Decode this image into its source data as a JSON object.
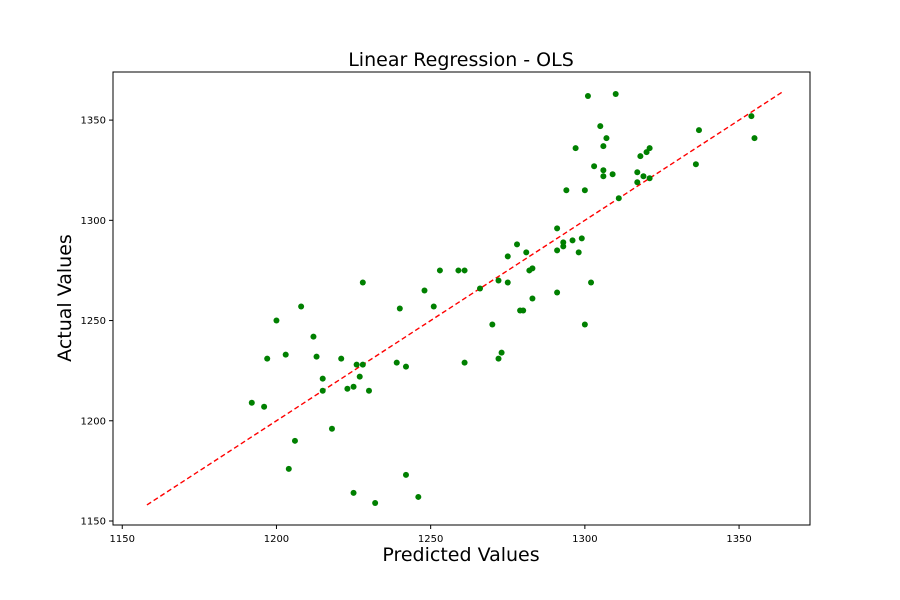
{
  "chart_data": {
    "type": "scatter",
    "title": "Linear Regression - OLS",
    "xlabel": "Predicted Values",
    "ylabel": "Actual Values",
    "xlim": [
      1147,
      1373
    ],
    "ylim": [
      1148,
      1374
    ],
    "xticks": [
      1150,
      1200,
      1250,
      1300,
      1350
    ],
    "yticks": [
      1150,
      1200,
      1250,
      1300,
      1350
    ],
    "grid": false,
    "colors": {
      "points": "#008000",
      "reference_line": "#ff0000"
    },
    "reference_line": {
      "style": "dashed",
      "x": [
        1158,
        1364
      ],
      "y": [
        1158,
        1364
      ]
    },
    "points": [
      [
        1192,
        1209
      ],
      [
        1196,
        1207
      ],
      [
        1197,
        1231
      ],
      [
        1200,
        1250
      ],
      [
        1203,
        1233
      ],
      [
        1204,
        1176
      ],
      [
        1206,
        1190
      ],
      [
        1208,
        1257
      ],
      [
        1212,
        1242
      ],
      [
        1213,
        1232
      ],
      [
        1215,
        1221
      ],
      [
        1215,
        1215
      ],
      [
        1218,
        1196
      ],
      [
        1221,
        1231
      ],
      [
        1223,
        1216
      ],
      [
        1225,
        1217
      ],
      [
        1225,
        1164
      ],
      [
        1226,
        1228
      ],
      [
        1227,
        1222
      ],
      [
        1228,
        1269
      ],
      [
        1228,
        1228
      ],
      [
        1230,
        1215
      ],
      [
        1232,
        1159
      ],
      [
        1239,
        1229
      ],
      [
        1240,
        1256
      ],
      [
        1242,
        1227
      ],
      [
        1242,
        1173
      ],
      [
        1246,
        1162
      ],
      [
        1248,
        1265
      ],
      [
        1251,
        1257
      ],
      [
        1253,
        1275
      ],
      [
        1259,
        1275
      ],
      [
        1261,
        1275
      ],
      [
        1261,
        1229
      ],
      [
        1266,
        1266
      ],
      [
        1270,
        1248
      ],
      [
        1272,
        1231
      ],
      [
        1272,
        1270
      ],
      [
        1273,
        1234
      ],
      [
        1275,
        1269
      ],
      [
        1275,
        1282
      ],
      [
        1278,
        1288
      ],
      [
        1279,
        1255
      ],
      [
        1280,
        1255
      ],
      [
        1281,
        1284
      ],
      [
        1282,
        1275
      ],
      [
        1283,
        1276
      ],
      [
        1283,
        1261
      ],
      [
        1291,
        1264
      ],
      [
        1291,
        1296
      ],
      [
        1291,
        1285
      ],
      [
        1293,
        1287
      ],
      [
        1293,
        1289
      ],
      [
        1294,
        1315
      ],
      [
        1296,
        1290
      ],
      [
        1297,
        1336
      ],
      [
        1298,
        1284
      ],
      [
        1299,
        1291
      ],
      [
        1300,
        1315
      ],
      [
        1300,
        1248
      ],
      [
        1301,
        1362
      ],
      [
        1302,
        1269
      ],
      [
        1303,
        1327
      ],
      [
        1305,
        1347
      ],
      [
        1306,
        1322
      ],
      [
        1306,
        1325
      ],
      [
        1306,
        1337
      ],
      [
        1307,
        1341
      ],
      [
        1309,
        1323
      ],
      [
        1310,
        1363
      ],
      [
        1311,
        1311
      ],
      [
        1317,
        1324
      ],
      [
        1317,
        1319
      ],
      [
        1318,
        1332
      ],
      [
        1319,
        1322
      ],
      [
        1320,
        1334
      ],
      [
        1321,
        1321
      ],
      [
        1321,
        1336
      ],
      [
        1336,
        1328
      ],
      [
        1337,
        1345
      ],
      [
        1354,
        1352
      ],
      [
        1355,
        1341
      ]
    ]
  }
}
